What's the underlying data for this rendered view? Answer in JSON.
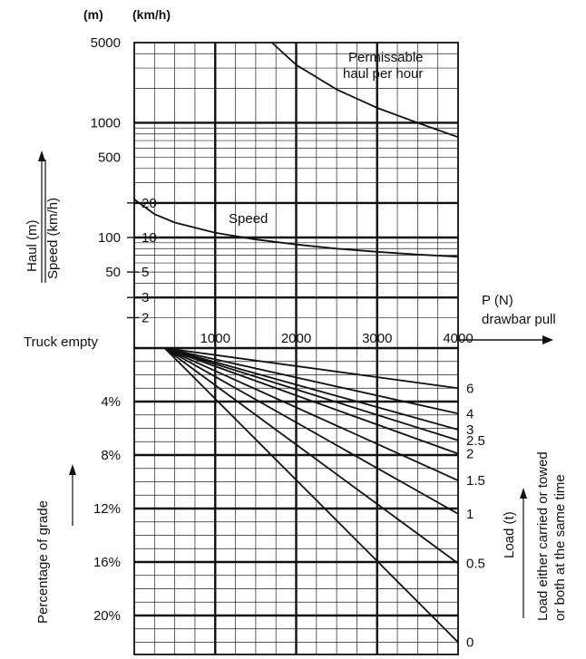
{
  "chart_data": [
    {
      "type": "line",
      "title": "",
      "units": {
        "haul": "(m)",
        "speed": "(km/h)"
      },
      "y_axis_label_haul": "Haul (m)",
      "y_axis_label_speed": "Speed (km/h)",
      "scale": "log",
      "haul_ticks": [
        "5000",
        "1000",
        "500",
        "100",
        "50"
      ],
      "haul_tick_values": [
        5000,
        1000,
        500,
        100,
        50
      ],
      "speed_ticks": [
        "20",
        "10",
        "5",
        "3",
        "2"
      ],
      "speed_tick_values": [
        20,
        10,
        5,
        3,
        2
      ],
      "x_axis_label_1": "P (N)",
      "x_axis_label_2": "drawbar pull",
      "x_ticks": [
        "1000",
        "2000",
        "3000",
        "4000"
      ],
      "x_tick_values": [
        1000,
        2000,
        3000,
        4000
      ],
      "xlim": [
        0,
        4000
      ],
      "series": [
        {
          "name": "Permissable haul per hour",
          "label_1": "Permissable",
          "label_2": "haul per hour",
          "x": [
            1700,
            2000,
            2500,
            3000,
            3500,
            4000
          ],
          "y": [
            5200,
            3200,
            1950,
            1350,
            1000,
            750
          ]
        },
        {
          "name": "Speed",
          "label": "Speed",
          "x": [
            0,
            250,
            500,
            1000,
            1500,
            2000,
            2500,
            3000,
            3500,
            4000
          ],
          "y": [
            21.5,
            16,
            13.5,
            11,
            9.6,
            8.7,
            8.0,
            7.5,
            7.1,
            6.8
          ]
        }
      ]
    },
    {
      "type": "line",
      "title": "",
      "y_axis_label": "Percentage of grade",
      "y_ticks": [
        "4%",
        "8%",
        "12%",
        "16%",
        "20%"
      ],
      "y_tick_values": [
        4,
        8,
        12,
        16,
        20
      ],
      "ylim": [
        0,
        23
      ],
      "zero_label": "Truck empty",
      "load_axis_label_1": "Load (t)",
      "load_axis_label_2": "Load either carried or towed",
      "load_axis_label_3": "or both at the same time",
      "origin_x": 375,
      "series": [
        {
          "name": "6",
          "x": [
            375,
            4000
          ],
          "y": [
            0,
            3.0
          ]
        },
        {
          "name": "4",
          "x": [
            375,
            4000
          ],
          "y": [
            0,
            4.9
          ]
        },
        {
          "name": "3",
          "x": [
            375,
            4000
          ],
          "y": [
            0,
            6.1
          ]
        },
        {
          "name": "2.5",
          "x": [
            375,
            4000
          ],
          "y": [
            0,
            6.9
          ]
        },
        {
          "name": "2",
          "x": [
            375,
            4000
          ],
          "y": [
            0,
            7.9
          ]
        },
        {
          "name": "1.5",
          "x": [
            375,
            4000
          ],
          "y": [
            0,
            9.9
          ]
        },
        {
          "name": "1",
          "x": [
            375,
            4000
          ],
          "y": [
            0,
            12.4
          ]
        },
        {
          "name": "0.5",
          "x": [
            375,
            4000
          ],
          "y": [
            0,
            16.1
          ]
        },
        {
          "name": "0",
          "x": [
            375,
            4000
          ],
          "y": [
            0,
            22.0
          ]
        }
      ]
    }
  ]
}
